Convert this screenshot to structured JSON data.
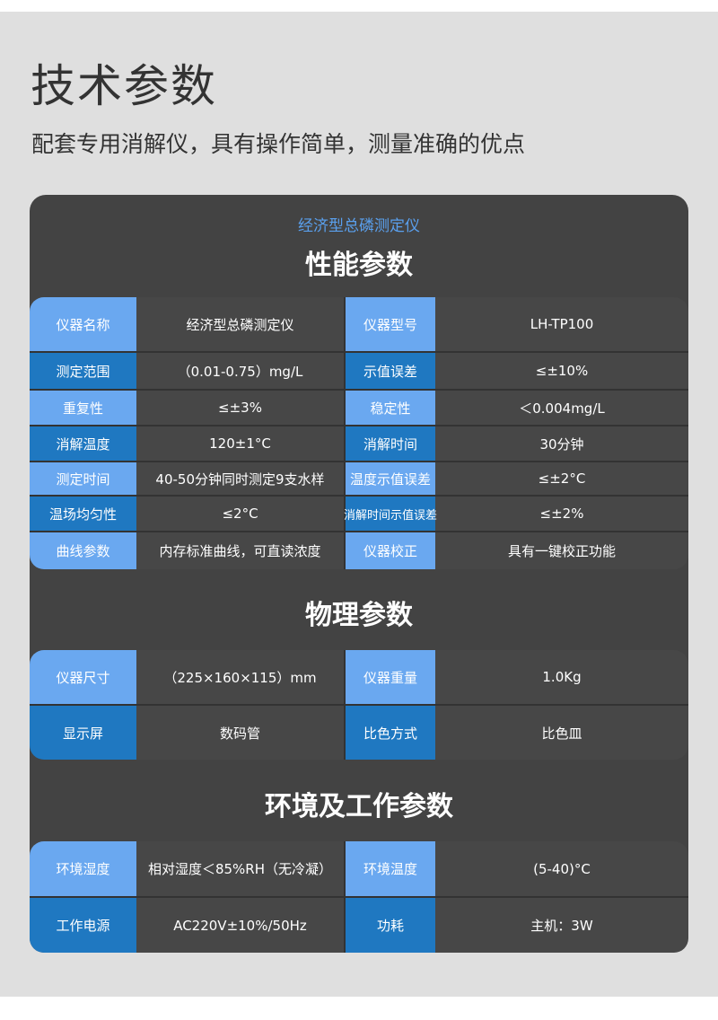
{
  "header": {
    "title": "技术参数",
    "subtitle": "配套专用消解仪，具有操作简单，测量准确的优点"
  },
  "card": {
    "product": "经济型总磷测定仪"
  },
  "colors": {
    "label_light": "#6aa8f0",
    "label_dark": "#1f78c1",
    "card": "#434343",
    "product_text": "#5aa0ee"
  },
  "sections": [
    {
      "title": "性能参数",
      "rows": [
        [
          "仪器名称",
          "经济型总磷测定仪",
          "仪器型号",
          "LH-TP100"
        ],
        [
          "测定范围",
          "（0.01-0.75）mg/L",
          "示值误差",
          "≤±10%"
        ],
        [
          "重复性",
          "≤±3%",
          "稳定性",
          "＜0.004mg/L"
        ],
        [
          "消解温度",
          "120±1°C",
          "消解时间",
          "30分钟"
        ],
        [
          "测定时间",
          "40-50分钟同时测定9支水样",
          "温度示值误差",
          "≤±2°C"
        ],
        [
          "温场均匀性",
          "≤2°C",
          "消解时间示值误差",
          "≤±2%"
        ],
        [
          "曲线参数",
          "内存标准曲线，可直读浓度",
          "仪器校正",
          "具有一键校正功能"
        ]
      ]
    },
    {
      "title": "物理参数",
      "rows": [
        [
          "仪器尺寸",
          "（225×160×115）mm",
          "仪器重量",
          "1.0Kg"
        ],
        [
          "显示屏",
          "数码管",
          "比色方式",
          "比色皿"
        ]
      ]
    },
    {
      "title": "环境及工作参数",
      "rows": [
        [
          "环境湿度",
          "相对湿度＜85%RH（无冷凝）",
          "环境温度",
          "(5-40)°C"
        ],
        [
          "工作电源",
          "AC220V±10%/50Hz",
          "功耗",
          "主机：3W"
        ]
      ]
    }
  ]
}
